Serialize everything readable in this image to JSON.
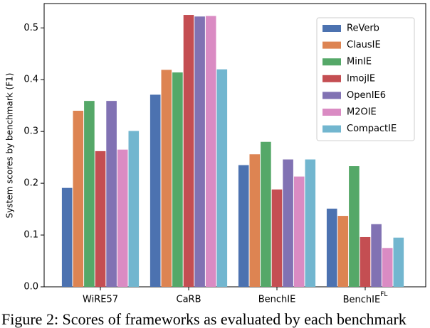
{
  "chart_data": {
    "type": "bar",
    "ylabel": "System scores by benchmark (F1)",
    "categories": [
      "WiRE57",
      "CaRB",
      "BenchIE",
      {
        "text": "BenchIE",
        "superscript": "FL"
      }
    ],
    "series": [
      {
        "name": "ReVerb",
        "color": "#4c72b0",
        "values": [
          0.191,
          0.371,
          0.235,
          0.151
        ]
      },
      {
        "name": "ClausIE",
        "color": "#dd8452",
        "values": [
          0.34,
          0.419,
          0.256,
          0.137
        ]
      },
      {
        "name": "MinIE",
        "color": "#55a868",
        "values": [
          0.359,
          0.414,
          0.28,
          0.233
        ]
      },
      {
        "name": "ImojIE",
        "color": "#c44e52",
        "values": [
          0.262,
          0.525,
          0.188,
          0.096
        ]
      },
      {
        "name": "OpenIE6",
        "color": "#8172b3",
        "values": [
          0.359,
          0.522,
          0.246,
          0.121
        ]
      },
      {
        "name": "M2OIE",
        "color": "#da8bc3",
        "values": [
          0.265,
          0.523,
          0.213,
          0.075
        ]
      },
      {
        "name": "CompactIE",
        "color": "#72b6cf",
        "values": [
          0.301,
          0.42,
          0.246,
          0.095
        ]
      }
    ],
    "ylim": [
      0,
      0.547
    ],
    "yticks": [
      {
        "value": 0,
        "label": "0.0"
      },
      0.1,
      0.2,
      0.3,
      0.4,
      0.5
    ],
    "legend": "upper right",
    "caption": "Figure 2: Scores of frameworks as evaluated by each benchmark"
  }
}
